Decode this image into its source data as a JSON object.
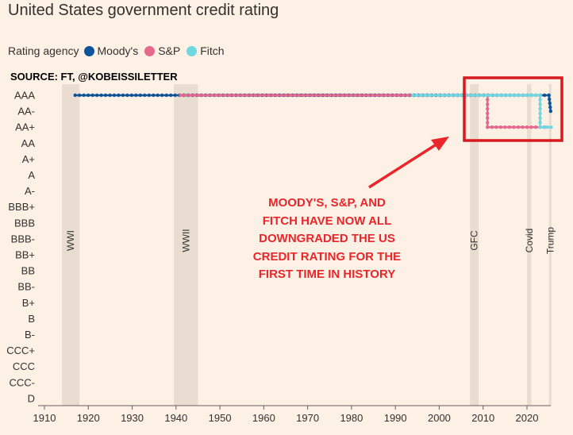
{
  "title": "United States government credit rating",
  "legend": {
    "heading": "Rating agency",
    "items": [
      {
        "name": "Moody's",
        "color": "#0f5499"
      },
      {
        "name": "S&P",
        "color": "#e5698c"
      },
      {
        "name": "Fitch",
        "color": "#6fd7df"
      }
    ]
  },
  "source": "SOURCE: FT, @KOBEISSILETTER",
  "annotation": [
    "MOODY'S, S&P, AND",
    "FITCH HAVE NOW ALL",
    "DOWNGRADED THE US",
    "CREDIT RATING FOR THE",
    "FIRST TIME IN HISTORY"
  ],
  "colors": {
    "background": "#fdf1e5",
    "shade": "#e5d9ce",
    "highlight_box": "#d71920",
    "arrow": "#e8262b"
  },
  "chart_data": {
    "type": "line",
    "title": "United States government credit rating",
    "x_range": [
      1910,
      2026
    ],
    "x_ticks": [
      1910,
      1920,
      1930,
      1940,
      1950,
      1960,
      1970,
      1980,
      1990,
      2000,
      2010,
      2020
    ],
    "y_categories": [
      "AAA",
      "AA-",
      "AA+",
      "AA",
      "A+",
      "A",
      "A-",
      "BBB+",
      "BBB",
      "BBB-",
      "BB+",
      "BB",
      "BB-",
      "B+",
      "B",
      "B-",
      "CCC+",
      "CCC",
      "CCC-",
      "D"
    ],
    "grid": false,
    "legend_position": "top-left",
    "series": [
      {
        "name": "Moody's",
        "color": "#0f5499",
        "points": [
          {
            "x": 1917,
            "y": "AAA"
          },
          {
            "x": 2025,
            "y": "AAA"
          },
          {
            "x": 2025.4,
            "y": "AA-"
          }
        ]
      },
      {
        "name": "S&P",
        "color": "#e5698c",
        "points": [
          {
            "x": 1941,
            "y": "AAA"
          },
          {
            "x": 2011,
            "y": "AAA"
          },
          {
            "x": 2011,
            "y": "AA+"
          },
          {
            "x": 2024,
            "y": "AA+"
          }
        ]
      },
      {
        "name": "Fitch",
        "color": "#6fd7df",
        "points": [
          {
            "x": 1994,
            "y": "AAA"
          },
          {
            "x": 2023,
            "y": "AAA"
          },
          {
            "x": 2023,
            "y": "AA+"
          },
          {
            "x": 2025.5,
            "y": "AA+"
          }
        ]
      }
    ],
    "shaded_periods": [
      {
        "label": "WWI",
        "start": 1914,
        "end": 1918
      },
      {
        "label": "WWII",
        "start": 1939.5,
        "end": 1945
      },
      {
        "label": "GFC",
        "start": 2007,
        "end": 2009
      },
      {
        "label": "Covid",
        "start": 2020,
        "end": 2021
      },
      {
        "label": "Trump",
        "start": 2025,
        "end": 2025.6
      }
    ]
  }
}
